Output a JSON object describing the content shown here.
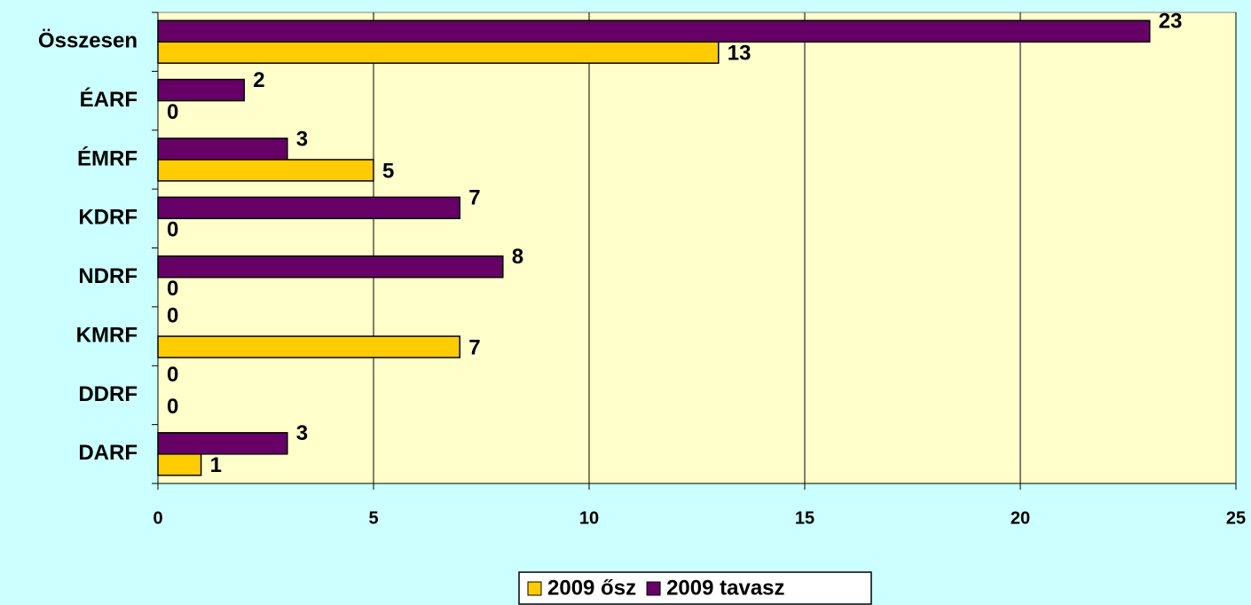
{
  "chart_data": {
    "type": "bar",
    "orientation": "horizontal",
    "categories": [
      "Összesen",
      "ÉARF",
      "ÉMRF",
      "KDRF",
      "NDRF",
      "KMRF",
      "DDRF",
      "DARF"
    ],
    "series": [
      {
        "name": "2009 ősz",
        "color": "#FFCC00",
        "values": [
          13,
          0,
          5,
          0,
          0,
          7,
          0,
          1
        ]
      },
      {
        "name": "2009 tavasz",
        "color": "#660066",
        "values": [
          23,
          2,
          3,
          7,
          8,
          0,
          0,
          3
        ]
      }
    ],
    "xlim": [
      0,
      25
    ],
    "xticks": [
      0,
      5,
      10,
      15,
      20,
      25
    ],
    "grid": true,
    "legend": "bottom"
  }
}
